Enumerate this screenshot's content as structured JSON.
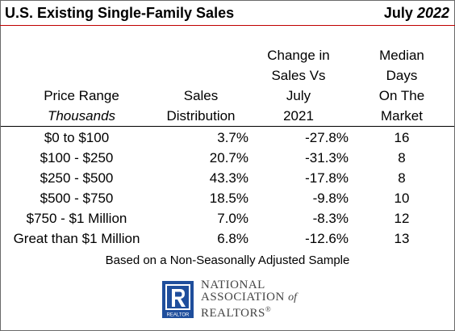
{
  "header": {
    "title": "U.S. Existing Single-Family Sales",
    "month": "July",
    "year": "2022"
  },
  "columns": {
    "price_range": [
      "Price Range",
      "Thousands"
    ],
    "sales_distribution": [
      "Sales",
      "Distribution"
    ],
    "change": [
      "Change in",
      "Sales Vs",
      "July",
      "2021"
    ],
    "median_days": [
      "Median",
      "Days",
      "On The",
      "Market"
    ]
  },
  "rows": [
    {
      "range": "$0 to $100",
      "distribution": "3.7%",
      "change": "-27.8%",
      "days": "16"
    },
    {
      "range": "$100 - $250",
      "distribution": "20.7%",
      "change": "-31.3%",
      "days": "8"
    },
    {
      "range": "$250 - $500",
      "distribution": "43.3%",
      "change": "-17.8%",
      "days": "8"
    },
    {
      "range": "$500 - $750",
      "distribution": "18.5%",
      "change": "-9.8%",
      "days": "10"
    },
    {
      "range": "$750 - $1 Million",
      "distribution": "7.0%",
      "change": "-8.3%",
      "days": "12"
    },
    {
      "range": "Great than $1 Million",
      "distribution": "6.8%",
      "change": "-12.6%",
      "days": "13"
    }
  ],
  "footnote": "Based on a Non-Seasonally Adjusted Sample",
  "logo": {
    "line1": "NATIONAL",
    "line2": "ASSOCIATION",
    "of": "of",
    "line3": "REALTORS",
    "reg": "®",
    "mark_text": "REALTOR",
    "color": "#1f4e9c"
  },
  "colors": {
    "title_rule": "#c00000",
    "logo_blue": "#1f4e9c"
  }
}
